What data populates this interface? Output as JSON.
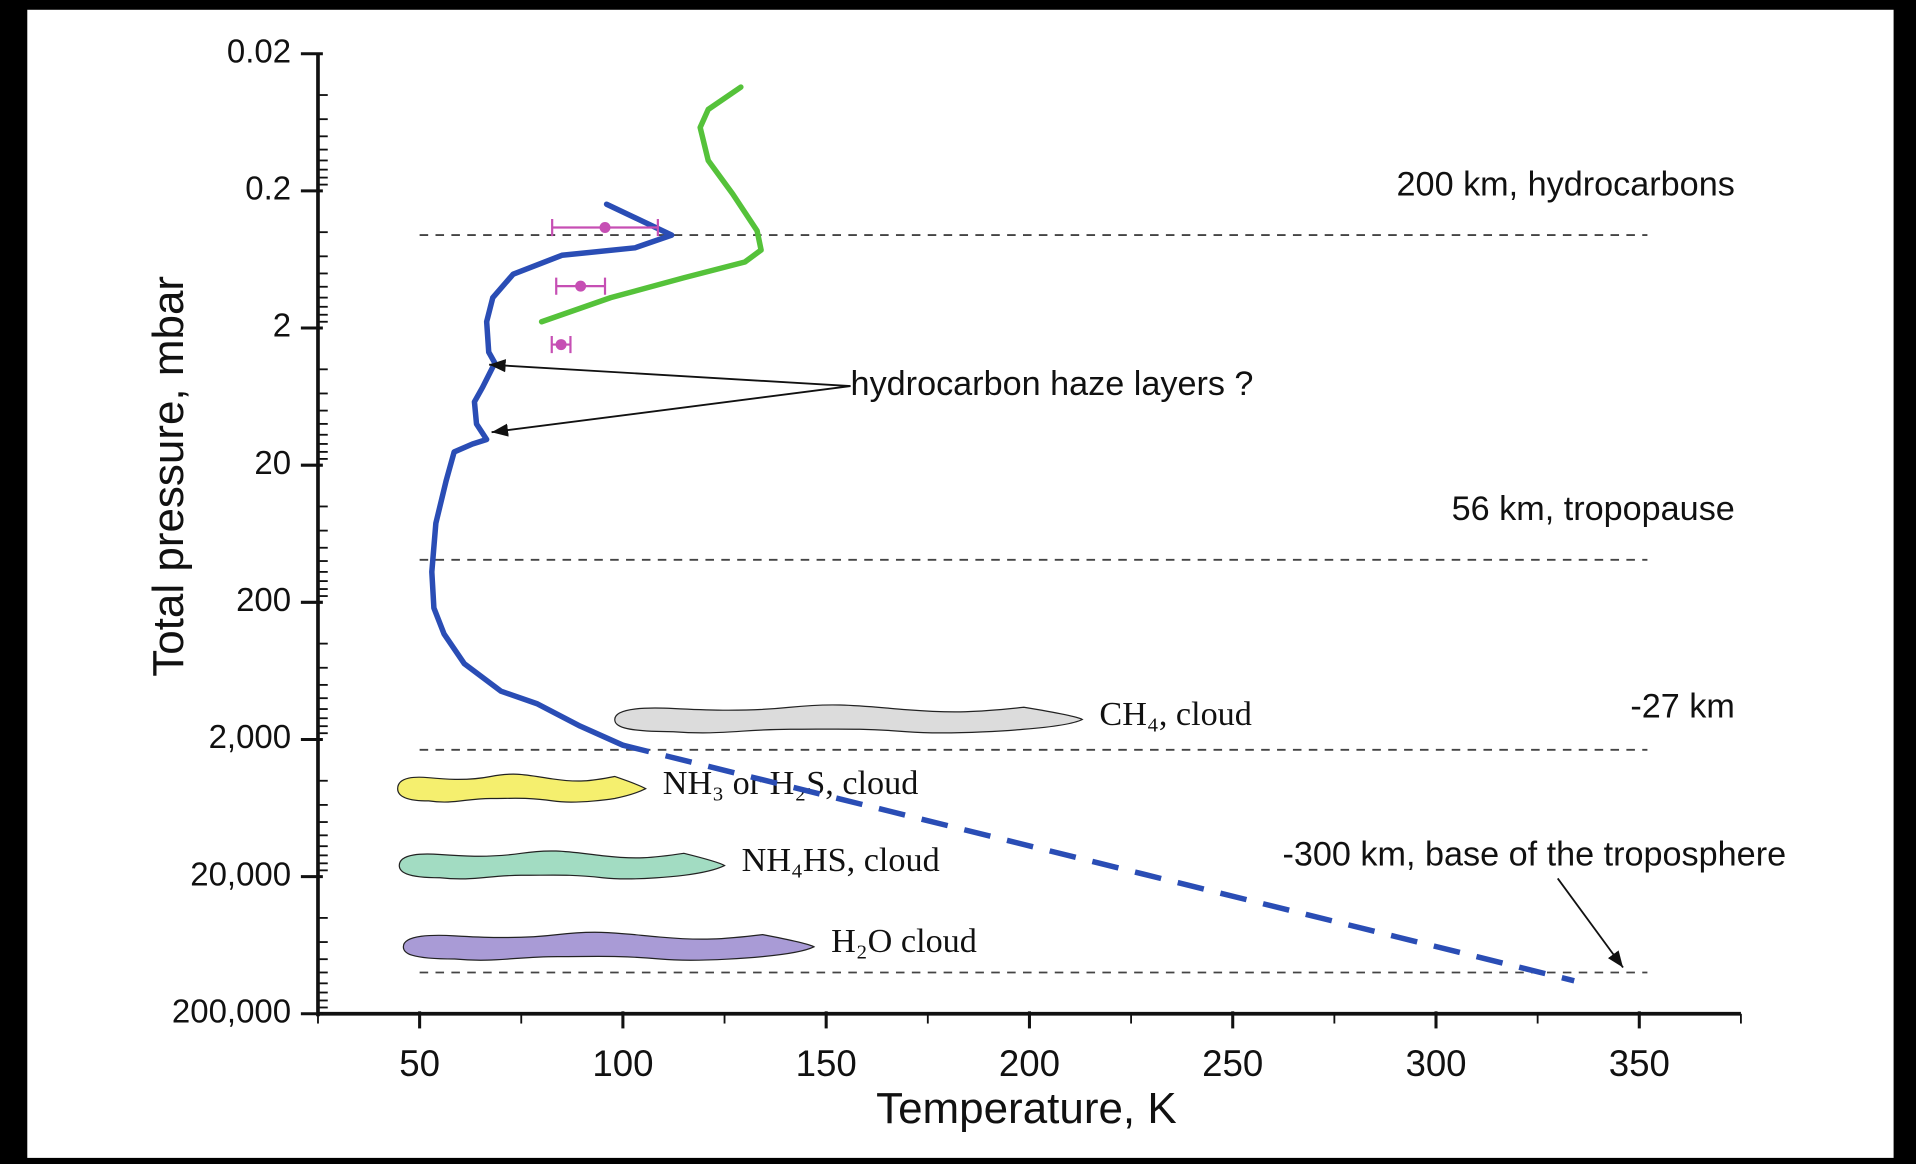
{
  "chart_data": {
    "type": "line",
    "xlabel": "Temperature, K",
    "ylabel": "Total pressure, mbar",
    "xlim": [
      25,
      375
    ],
    "ylim": [
      0.02,
      200000
    ],
    "yscale": "log",
    "y_inverted": true,
    "xticks": [
      50,
      100,
      150,
      200,
      250,
      300,
      350
    ],
    "yticks": [
      "0.02",
      "0.2",
      "2",
      "20",
      "200"
    ],
    "yticks_full": [
      0.02,
      0.2,
      2,
      20,
      200,
      {
        "value": 2000,
        "label": "2,000"
      },
      {
        "value": 20000,
        "label": "20,000"
      },
      {
        "value": 200000,
        "label": "200,000"
      }
    ],
    "series": [
      {
        "color": "#2a4db5",
        "linestyle": "solid",
        "x": [
          96,
          112,
          103,
          85,
          73,
          68,
          66.5,
          67,
          68.5,
          65.5,
          63.5,
          64,
          66.5,
          63,
          58.5,
          56.5,
          54,
          53,
          53.5,
          56,
          61,
          70,
          79,
          89.5,
          100
        ],
        "values": [
          0.25,
          0.42,
          0.52,
          0.59,
          0.81,
          1.2,
          1.8,
          3,
          3.6,
          5.4,
          6.9,
          10,
          13,
          14,
          16,
          26,
          53,
          120,
          220,
          340,
          560,
          890,
          1100,
          1600,
          2200
        ]
      },
      {
        "color": "#2a4db5",
        "linestyle": "dashed",
        "x": [
          100,
          334
        ],
        "values": [
          2200,
          115000
        ]
      },
      {
        "color": "#55c23a",
        "linestyle": "solid",
        "x": [
          129,
          121,
          119,
          121,
          127,
          133,
          134,
          130,
          115,
          97,
          80
        ],
        "values": [
          0.035,
          0.051,
          0.069,
          0.12,
          0.21,
          0.39,
          0.54,
          0.66,
          0.86,
          1.2,
          1.8
        ]
      }
    ],
    "error_points": {
      "color": "#c64fb4",
      "x": [
        95.6,
        89.6,
        84.8
      ],
      "values": [
        0.37,
        0.99,
        2.64
      ],
      "xerr": [
        13,
        6,
        2.3
      ]
    },
    "levels": [
      {
        "value": 0.42,
        "label": "200 km, hydrocarbons"
      },
      {
        "value": 98,
        "label": "56 km, tropopause"
      },
      {
        "value": 2380,
        "label": "-27 km"
      },
      {
        "value": 100000,
        "label": "-300 km, base of the troposphere",
        "arrow": [
          346,
          92000
        ]
      }
    ],
    "clouds": [
      {
        "label": "CH₄, cloud",
        "color": "#dcdcdc",
        "x": [
          98,
          213
        ],
        "y": 1430
      },
      {
        "label": "NH₃ or H₂S, cloud",
        "color": "#f5ef6e",
        "x": [
          44.6,
          105.6
        ],
        "y": 4570
      },
      {
        "label": "NH₄HS, cloud",
        "color": "#a2dcc2",
        "x": [
          45,
          125
        ],
        "y": 16600
      },
      {
        "label": "H₂O cloud",
        "color": "#a99bd6",
        "x": [
          46,
          147
        ],
        "y": 65000
      }
    ],
    "annotation": {
      "text": "hydrocarbon haze layers ?",
      "x": 156,
      "y": 5.3,
      "targets": [
        [
          67.1,
          3.7
        ],
        [
          67.7,
          11.5
        ]
      ]
    }
  }
}
